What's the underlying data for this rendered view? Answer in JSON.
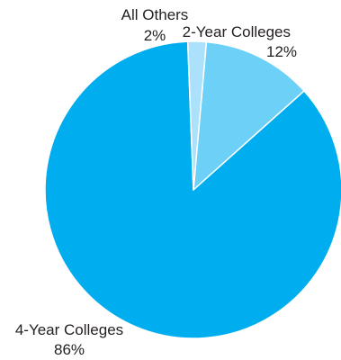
{
  "chart_data": {
    "type": "pie",
    "title": "",
    "slices": [
      {
        "name": "2-Year Colleges",
        "value": 12,
        "label": "12%",
        "color": "#6dd0f7"
      },
      {
        "name": "4-Year Colleges",
        "value": 86,
        "label": "86%",
        "color": "#00aeef"
      },
      {
        "name": "All Others",
        "value": 2,
        "label": "2%",
        "color": "#abe1fa"
      }
    ],
    "legend": "none",
    "labels_outside": true
  }
}
